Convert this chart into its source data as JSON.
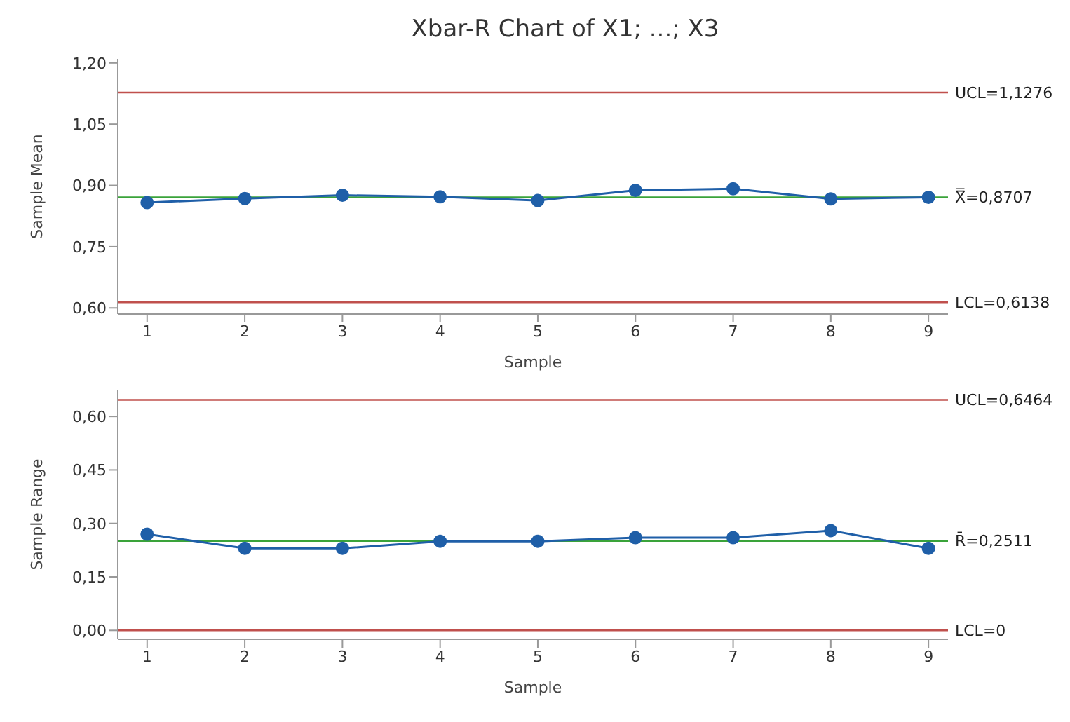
{
  "chart_data": [
    {
      "type": "line",
      "title": "Xbar-R Chart of X1; ...; X3",
      "xlabel": "Sample",
      "ylabel": "Sample Mean",
      "x": [
        1,
        2,
        3,
        4,
        5,
        6,
        7,
        8,
        9
      ],
      "series": [
        {
          "color": "#1f5fa8",
          "values": [
            0.858,
            0.868,
            0.876,
            0.872,
            0.863,
            0.888,
            0.892,
            0.867,
            0.871
          ]
        }
      ],
      "xlim": [
        0.7,
        9.2
      ],
      "xticks": [
        1,
        2,
        3,
        4,
        5,
        6,
        7,
        8,
        9
      ],
      "ylim": [
        0.585,
        1.21
      ],
      "yticks": [
        {
          "value": 0.6,
          "label": "0,60"
        },
        {
          "value": 0.75,
          "label": "0,75"
        },
        {
          "value": 0.9,
          "label": "0,90"
        },
        {
          "value": 1.05,
          "label": "1,05"
        },
        {
          "value": 1.2,
          "label": "1,20"
        }
      ],
      "ref_lines": [
        {
          "axis": "y",
          "value": 1.1276,
          "label": "UCL=1,1276",
          "color": "#c0504d"
        },
        {
          "axis": "y",
          "value": 0.8707,
          "label": "X̿=0,8707",
          "color": "#3aa33a"
        },
        {
          "axis": "y",
          "value": 0.6138,
          "label": "LCL=0,6138",
          "color": "#c0504d"
        }
      ],
      "marker": "circle",
      "line_style": "solid",
      "grid": false,
      "legend": false
    },
    {
      "type": "line",
      "xlabel": "Sample",
      "ylabel": "Sample Range",
      "x": [
        1,
        2,
        3,
        4,
        5,
        6,
        7,
        8,
        9
      ],
      "series": [
        {
          "color": "#1f5fa8",
          "values": [
            0.27,
            0.23,
            0.23,
            0.25,
            0.25,
            0.26,
            0.26,
            0.28,
            0.23
          ]
        }
      ],
      "xlim": [
        0.7,
        9.2
      ],
      "xticks": [
        1,
        2,
        3,
        4,
        5,
        6,
        7,
        8,
        9
      ],
      "ylim": [
        -0.025,
        0.675
      ],
      "yticks": [
        {
          "value": 0,
          "label": "0,00"
        },
        {
          "value": 0.15,
          "label": "0,15"
        },
        {
          "value": 0.3,
          "label": "0,30"
        },
        {
          "value": 0.45,
          "label": "0,45"
        },
        {
          "value": 0.6,
          "label": "0,60"
        }
      ],
      "ref_lines": [
        {
          "axis": "y",
          "value": 0.6464,
          "label": "UCL=0,6464",
          "color": "#c0504d"
        },
        {
          "axis": "y",
          "value": 0.2511,
          "label": "R̄=0,2511",
          "color": "#3aa33a"
        },
        {
          "axis": "y",
          "value": 0,
          "label": "LCL=0",
          "color": "#c0504d"
        }
      ],
      "marker": "circle",
      "line_style": "solid",
      "grid": false,
      "legend": false
    }
  ]
}
